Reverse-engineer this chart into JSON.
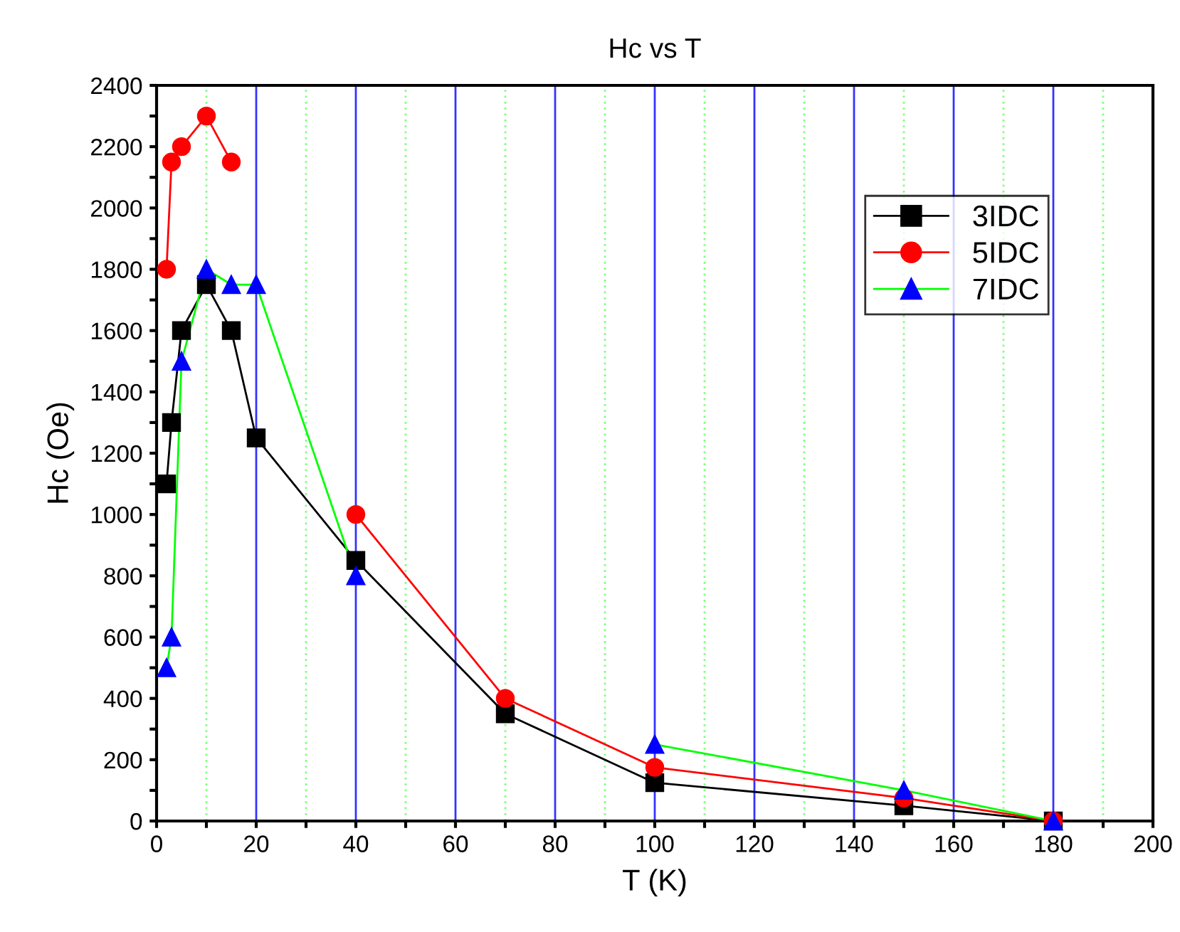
{
  "chart_data": {
    "type": "line",
    "title": "Hc vs T",
    "xlabel": "T (K)",
    "ylabel": "Hc (Oe)",
    "xlim": [
      0,
      200
    ],
    "ylim": [
      0,
      2400
    ],
    "xticks": [
      0,
      {
        "value": 10,
        "label": null
      },
      20,
      {
        "value": 30,
        "label": null
      },
      40,
      {
        "value": 50,
        "label": null
      },
      60,
      {
        "value": 70,
        "label": null
      },
      80,
      {
        "value": 90,
        "label": null
      },
      100,
      {
        "value": 110,
        "label": null
      },
      120,
      {
        "value": 130,
        "label": null
      },
      140,
      {
        "value": 150,
        "label": null
      },
      160,
      {
        "value": 170,
        "label": null
      },
      180,
      {
        "value": 190,
        "label": null
      },
      200
    ],
    "yticks": [
      0,
      {
        "value": 100,
        "label": null
      },
      200,
      {
        "value": 300,
        "label": null
      },
      400,
      {
        "value": 500,
        "label": null
      },
      600,
      {
        "value": 700,
        "label": null
      },
      800,
      {
        "value": 900,
        "label": null
      },
      1000,
      {
        "value": 1100,
        "label": null
      },
      1200,
      {
        "value": 1300,
        "label": null
      },
      1400,
      {
        "value": 1500,
        "label": null
      },
      1600,
      {
        "value": 1700,
        "label": null
      },
      1800,
      {
        "value": 1900,
        "label": null
      },
      2000,
      {
        "value": 2100,
        "label": null
      },
      2200,
      {
        "value": 2300,
        "label": null
      },
      2400
    ],
    "grid": "x",
    "legend": "top right",
    "line_style": "solid",
    "series": [
      {
        "name": "3IDC",
        "color": "#000000",
        "marker": "square",
        "x": [
          2,
          3,
          5,
          10,
          15,
          20,
          40,
          70,
          100,
          150,
          180
        ],
        "values": [
          1100,
          1300,
          1600,
          1750,
          1600,
          1250,
          850,
          350,
          125,
          50,
          0
        ]
      },
      {
        "name": "5IDC",
        "color": "#ff0000",
        "marker": "circle",
        "x": [
          2,
          3,
          5,
          10,
          15,
          20,
          40,
          70,
          100,
          150,
          180
        ],
        "values": [
          1800,
          2150,
          2200,
          2300,
          2150,
          null,
          1000,
          400,
          175,
          75,
          0
        ]
      },
      {
        "name": "7IDC",
        "color": "#0000ff",
        "marker": "triangle",
        "x": [
          2,
          3,
          5,
          10,
          15,
          20,
          40,
          70,
          100,
          150,
          180
        ],
        "values": [
          500,
          600,
          1500,
          1800,
          1750,
          1750,
          800,
          null,
          250,
          100,
          0
        ]
      }
    ]
  }
}
